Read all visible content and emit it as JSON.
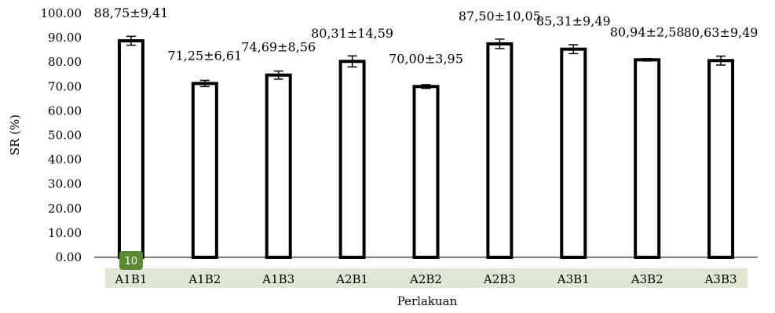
{
  "chart_data": {
    "type": "bar",
    "categories": [
      "A1B1",
      "A1B2",
      "A1B3",
      "A2B1",
      "A2B2",
      "A2B3",
      "A3B1",
      "A3B2",
      "A3B3"
    ],
    "values": [
      88.75,
      71.25,
      74.69,
      80.31,
      70.0,
      87.5,
      85.31,
      80.94,
      80.63
    ],
    "errors": [
      9.41,
      6.61,
      8.56,
      14.59,
      3.95,
      10.05,
      9.49,
      2.58,
      9.49
    ],
    "data_labels": [
      "88,75±9,41",
      "71,25±6,61",
      "74,69±8,56",
      "80,31±14,59",
      "70,00±3,95",
      "87,50±10,05",
      "85,31±9,49",
      "80,94±2,58",
      "80,63±9,49"
    ],
    "yticks": [
      "0.00",
      "10.00",
      "20.00",
      "30.00",
      "40.00",
      "50.00",
      "60.00",
      "70.00",
      "80.00",
      "90.00",
      "100.00"
    ],
    "ylim": [
      0,
      100
    ],
    "ylabel": "SR (%)",
    "xlabel": "Perlakuan",
    "grid": false,
    "badge": "10",
    "colors": {
      "bar_fill": "#ffffff",
      "bar_stroke": "#000000",
      "category_highlight": "#dfe6d3",
      "badge": "#5b8a33"
    }
  }
}
